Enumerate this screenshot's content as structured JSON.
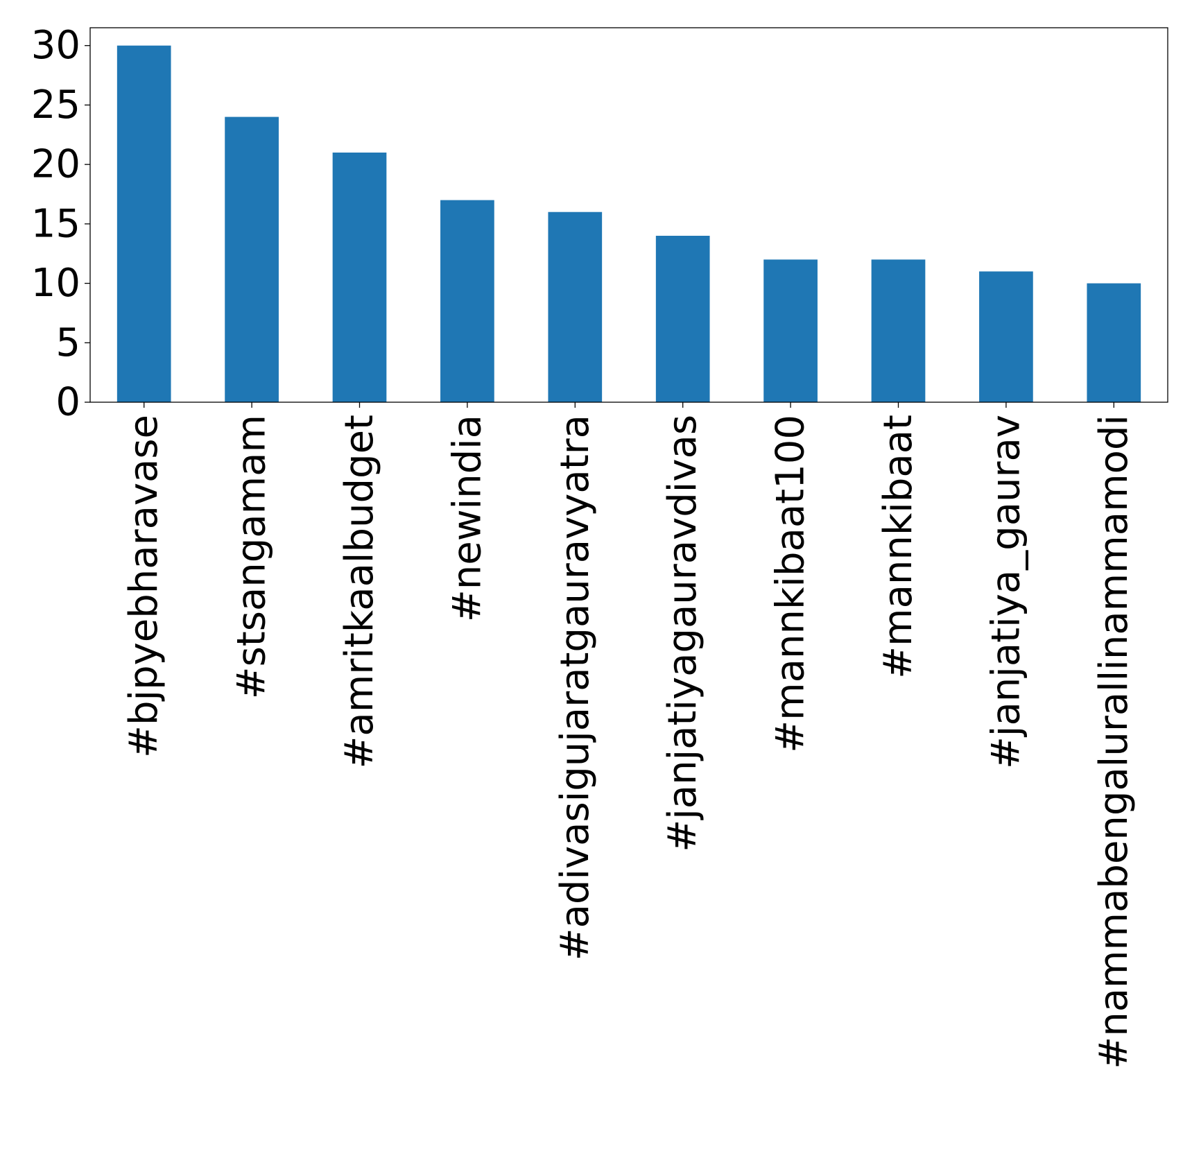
{
  "chart_data": {
    "type": "bar",
    "title": "",
    "xlabel": "",
    "ylabel": "",
    "categories": [
      "#bjpyebharavase",
      "#stsangamam",
      "#amritkaalbudget",
      "#newindia",
      "#adivasigujaratgauravyatra",
      "#janjatiyagauravdivas",
      "#mannkibaat100",
      "#mannkibaat",
      "#janjatiya_gaurav",
      "#nammabengalurallinammamodi"
    ],
    "values": [
      30,
      24,
      21,
      17,
      16,
      14,
      12,
      12,
      11,
      10
    ],
    "ylim": [
      0,
      31.5
    ],
    "yticks": [
      0,
      5,
      10,
      15,
      20,
      25,
      30
    ],
    "bar_color": "#1f77b4",
    "grid": false,
    "legend": "none"
  }
}
